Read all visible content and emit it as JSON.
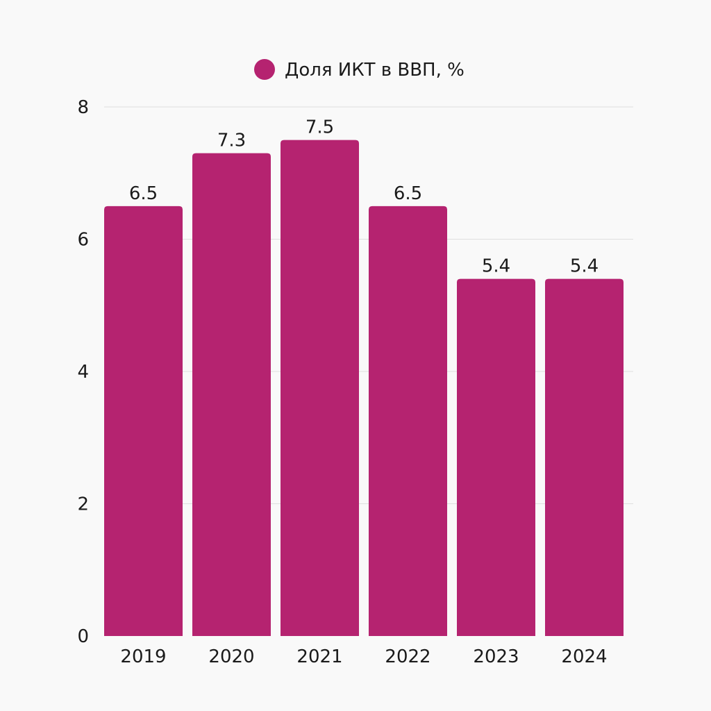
{
  "colors": {
    "background": "#f9f9f9",
    "bar": "#b52370",
    "grid": "#dedede",
    "text": "#1a1a1a"
  },
  "chart_data": {
    "type": "bar",
    "title": "",
    "legend": {
      "label": "Доля ИКТ в ВВП, %",
      "placement": "top-center"
    },
    "categories": [
      "2019",
      "2020",
      "2021",
      "2022",
      "2023",
      "2024"
    ],
    "series": [
      {
        "name": "Доля ИКТ в ВВП, %",
        "values": [
          6.5,
          7.3,
          7.5,
          6.5,
          5.4,
          5.4
        ],
        "labels": [
          "6.5",
          "7.3",
          "7.5",
          "6.5",
          "5.4",
          "5.4"
        ]
      }
    ],
    "ylim": [
      0,
      8
    ],
    "yticks": [
      {
        "value": 0,
        "label": "0"
      },
      {
        "value": 2,
        "label": "2"
      },
      {
        "value": 4,
        "label": "4"
      },
      {
        "value": 6,
        "label": "6"
      },
      {
        "value": 8,
        "label": "8"
      }
    ],
    "grid": true,
    "xlabel": "",
    "ylabel": ""
  }
}
